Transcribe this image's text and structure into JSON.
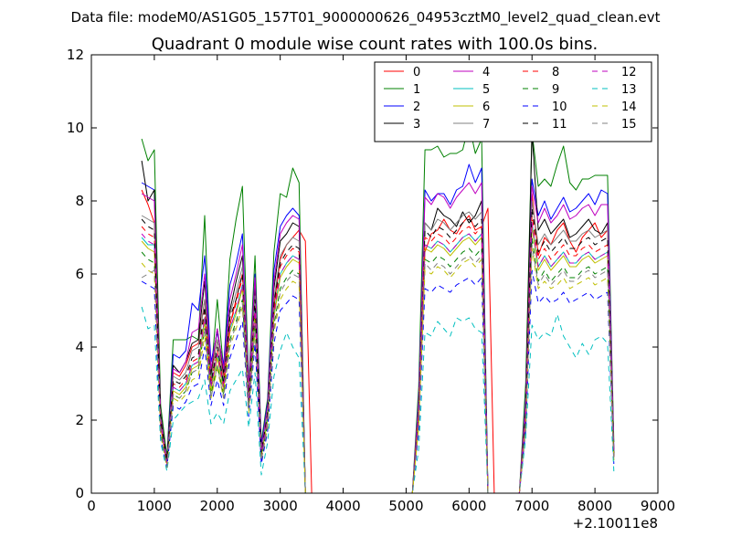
{
  "figure": {
    "suptitle": "Data file: modeM0/AS1G05_157T01_9000000626_04953cztM0_level2_quad_clean.evt"
  },
  "chart_data": {
    "type": "line",
    "title": "Quadrant 0 module wise count rates with 100.0s bins.",
    "xlabel": "",
    "ylabel": "",
    "x_offset_label": "+2.10011e8",
    "xlim": [
      0,
      9000
    ],
    "ylim": [
      0,
      12
    ],
    "xticks": [
      0,
      1000,
      2000,
      3000,
      4000,
      5000,
      6000,
      7000,
      8000,
      9000
    ],
    "yticks": [
      0,
      2,
      4,
      6,
      8,
      10,
      12
    ],
    "grid": false,
    "legend_position": "top-right",
    "legend_columns": 4,
    "x": [
      800,
      900,
      1000,
      1100,
      1200,
      1300,
      1400,
      1500,
      1600,
      1700,
      1800,
      1900,
      2000,
      2100,
      2200,
      2300,
      2400,
      2500,
      2600,
      2700,
      2800,
      2900,
      3000,
      3100,
      3200,
      3300,
      3400,
      3500,
      5100,
      5200,
      5300,
      5400,
      5500,
      5600,
      5700,
      5800,
      5900,
      6000,
      6100,
      6200,
      6300,
      6400,
      6800,
      6900,
      7000,
      7100,
      7200,
      7300,
      7400,
      7500,
      7600,
      7700,
      7800,
      7900,
      8000,
      8100,
      8200,
      8300
    ],
    "series": [
      {
        "name": "0",
        "color": "#ff0000",
        "dash": "solid",
        "values": [
          8.3,
          7.9,
          7.4,
          2.0,
          0.9,
          3.3,
          3.2,
          3.5,
          4.0,
          4.1,
          5.3,
          3.2,
          4.2,
          3.2,
          4.6,
          5.3,
          6.0,
          2.8,
          5.6,
          1.1,
          2.1,
          5.1,
          6.4,
          6.8,
          7.0,
          7.2,
          6.9,
          0,
          0,
          2.4,
          6.6,
          7.1,
          7.2,
          7.5,
          7.2,
          7.1,
          7.4,
          7.6,
          7.2,
          7.3,
          7.8,
          0,
          0,
          2.3,
          8.2,
          6.5,
          7.0,
          6.8,
          7.2,
          7.4,
          6.9,
          6.6,
          7.0,
          7.2,
          7.4,
          7.0,
          7.2,
          1.1
        ]
      },
      {
        "name": "1",
        "color": "#008000",
        "dash": "solid",
        "values": [
          9.7,
          9.1,
          9.4,
          2.4,
          1.0,
          4.2,
          4.2,
          4.2,
          4.3,
          4.2,
          7.6,
          3.2,
          5.3,
          3.4,
          6.4,
          7.5,
          8.4,
          3.0,
          6.5,
          1.4,
          2.6,
          6.6,
          8.2,
          8.1,
          8.9,
          8.5,
          0,
          0,
          0,
          2.9,
          9.4,
          9.4,
          9.5,
          9.2,
          9.3,
          9.3,
          9.4,
          10.1,
          9.3,
          9.7,
          0,
          0,
          0,
          3.0,
          9.9,
          8.4,
          8.6,
          8.4,
          9.0,
          9.5,
          8.5,
          8.3,
          8.6,
          8.6,
          8.7,
          8.7,
          8.7,
          1.4
        ]
      },
      {
        "name": "2",
        "color": "#0000ff",
        "dash": "solid",
        "values": [
          8.5,
          8.4,
          8.3,
          2.0,
          0.9,
          3.8,
          3.7,
          3.9,
          5.2,
          5.0,
          6.5,
          3.6,
          4.4,
          3.5,
          5.7,
          6.3,
          7.1,
          2.9,
          6.0,
          1.3,
          2.5,
          6.1,
          7.3,
          7.6,
          7.8,
          7.6,
          0,
          0,
          0,
          2.6,
          8.3,
          8.0,
          8.2,
          8.2,
          7.9,
          8.3,
          8.4,
          9.0,
          8.5,
          8.9,
          0,
          0,
          0,
          2.6,
          8.6,
          7.6,
          8.0,
          7.5,
          7.8,
          8.1,
          7.7,
          7.8,
          8.0,
          8.2,
          7.9,
          8.3,
          8.2,
          1.2
        ]
      },
      {
        "name": "3",
        "color": "#000000",
        "dash": "solid",
        "values": [
          9.1,
          8.0,
          8.3,
          2.2,
          0.9,
          3.5,
          3.3,
          3.6,
          4.1,
          4.2,
          5.8,
          3.3,
          4.5,
          3.3,
          5.0,
          5.8,
          6.5,
          2.8,
          5.7,
          1.2,
          2.4,
          5.6,
          6.9,
          7.1,
          7.4,
          7.3,
          0,
          0,
          0,
          2.4,
          7.4,
          7.2,
          7.8,
          7.6,
          7.5,
          7.3,
          7.7,
          7.4,
          7.6,
          8.0,
          0,
          0,
          0,
          2.4,
          9.9,
          7.2,
          7.5,
          7.1,
          7.3,
          7.5,
          7.0,
          7.1,
          7.3,
          7.5,
          7.2,
          7.1,
          7.4,
          1.1
        ]
      },
      {
        "name": "4",
        "color": "#bf00bf",
        "dash": "solid",
        "values": [
          8.2,
          8.1,
          8.0,
          2.1,
          0.9,
          3.4,
          3.3,
          3.6,
          4.4,
          4.5,
          6.0,
          3.4,
          4.5,
          3.4,
          5.3,
          6.0,
          6.8,
          2.9,
          5.9,
          1.2,
          2.4,
          5.8,
          7.1,
          7.4,
          7.6,
          7.5,
          0,
          0,
          0,
          2.5,
          8.1,
          7.9,
          8.2,
          8.1,
          7.8,
          8.1,
          8.3,
          8.5,
          8.2,
          8.5,
          0,
          0,
          0,
          2.5,
          8.4,
          7.4,
          7.8,
          7.4,
          7.6,
          7.9,
          7.5,
          7.6,
          7.8,
          7.9,
          7.6,
          7.9,
          7.9,
          1.2
        ]
      },
      {
        "name": "5",
        "color": "#00bfbf",
        "dash": "solid",
        "values": [
          7.0,
          6.8,
          6.8,
          1.9,
          0.8,
          2.9,
          2.8,
          3.0,
          3.5,
          3.6,
          4.8,
          2.9,
          3.8,
          2.9,
          4.5,
          5.0,
          5.7,
          2.5,
          5.0,
          1.0,
          2.1,
          4.9,
          6.0,
          6.3,
          6.5,
          6.4,
          0,
          0,
          0,
          2.1,
          6.8,
          6.7,
          6.9,
          6.8,
          6.6,
          6.8,
          7.0,
          7.1,
          6.9,
          7.1,
          0,
          0,
          0,
          2.1,
          7.4,
          6.2,
          6.5,
          6.2,
          6.4,
          6.6,
          6.3,
          6.3,
          6.5,
          6.6,
          6.4,
          6.5,
          6.6,
          1.0
        ]
      },
      {
        "name": "6",
        "color": "#bfbf00",
        "dash": "solid",
        "values": [
          6.9,
          6.7,
          6.6,
          1.8,
          0.8,
          2.8,
          2.7,
          2.9,
          3.4,
          3.5,
          4.7,
          2.8,
          3.7,
          2.8,
          4.4,
          4.9,
          5.6,
          2.4,
          4.9,
          1.0,
          2.0,
          4.8,
          5.9,
          6.2,
          6.4,
          6.3,
          0,
          0,
          0,
          2.0,
          6.7,
          6.6,
          6.8,
          6.7,
          6.5,
          6.7,
          6.9,
          7.0,
          6.8,
          7.0,
          0,
          0,
          0,
          2.0,
          7.3,
          6.1,
          6.4,
          6.1,
          6.3,
          6.5,
          6.2,
          6.2,
          6.4,
          6.5,
          6.3,
          6.4,
          6.5,
          0.9
        ]
      },
      {
        "name": "7",
        "color": "#808080",
        "dash": "solid",
        "values": [
          7.6,
          7.5,
          7.4,
          2.0,
          0.9,
          3.2,
          3.1,
          3.3,
          3.9,
          4.0,
          5.3,
          3.1,
          4.2,
          3.1,
          4.9,
          5.5,
          6.2,
          2.7,
          5.4,
          1.1,
          2.3,
          5.3,
          6.5,
          6.8,
          7.0,
          6.9,
          0,
          0,
          0,
          2.3,
          7.4,
          7.2,
          7.5,
          7.4,
          7.2,
          7.4,
          7.6,
          7.7,
          7.5,
          7.7,
          0,
          0,
          0,
          2.3,
          8.0,
          6.8,
          7.1,
          6.8,
          7.0,
          7.2,
          6.9,
          6.9,
          7.1,
          7.2,
          7.0,
          7.1,
          7.2,
          1.1
        ]
      },
      {
        "name": "8",
        "color": "#ff0000",
        "dash": "dashed",
        "values": [
          7.3,
          7.1,
          7.0,
          1.9,
          0.8,
          3.0,
          2.9,
          3.1,
          3.6,
          3.7,
          5.0,
          3.0,
          3.9,
          3.0,
          4.6,
          5.2,
          5.9,
          2.6,
          5.1,
          1.0,
          2.2,
          5.0,
          6.2,
          6.5,
          6.7,
          6.6,
          0,
          0,
          0,
          2.2,
          7.0,
          6.9,
          7.1,
          7.0,
          6.8,
          7.0,
          7.2,
          7.3,
          7.1,
          7.3,
          0,
          0,
          0,
          2.2,
          7.6,
          6.4,
          6.7,
          6.4,
          6.6,
          6.8,
          6.5,
          6.5,
          6.7,
          6.8,
          6.6,
          6.7,
          6.8,
          1.0
        ]
      },
      {
        "name": "9",
        "color": "#008000",
        "dash": "dashed",
        "values": [
          6.6,
          6.4,
          6.3,
          1.7,
          0.8,
          2.7,
          2.6,
          2.8,
          3.3,
          3.4,
          4.5,
          2.7,
          3.5,
          2.7,
          4.2,
          4.7,
          5.3,
          2.3,
          4.6,
          0.9,
          1.9,
          4.6,
          5.6,
          5.9,
          6.1,
          6.0,
          0,
          0,
          0,
          1.9,
          6.4,
          6.3,
          6.5,
          6.4,
          6.2,
          6.4,
          6.6,
          6.7,
          6.5,
          6.7,
          0,
          0,
          0,
          1.9,
          7.0,
          5.8,
          6.1,
          5.8,
          6.0,
          6.2,
          5.9,
          5.9,
          6.1,
          6.2,
          6.0,
          6.1,
          6.2,
          0.9
        ]
      },
      {
        "name": "10",
        "color": "#0000ff",
        "dash": "dashed",
        "values": [
          5.8,
          5.7,
          5.6,
          1.5,
          0.7,
          2.4,
          2.3,
          2.5,
          2.9,
          3.0,
          4.0,
          2.4,
          3.1,
          2.4,
          3.7,
          4.2,
          4.7,
          2.1,
          4.1,
          0.8,
          1.7,
          4.1,
          5.0,
          5.2,
          5.4,
          5.3,
          0,
          0,
          0,
          1.7,
          5.6,
          5.5,
          5.7,
          5.6,
          5.5,
          5.7,
          5.8,
          5.9,
          5.7,
          5.9,
          0,
          0,
          0,
          1.7,
          6.1,
          5.2,
          5.4,
          5.2,
          5.3,
          5.5,
          5.2,
          5.3,
          5.4,
          5.5,
          5.3,
          5.4,
          5.5,
          0.8
        ]
      },
      {
        "name": "11",
        "color": "#000000",
        "dash": "dashed",
        "values": [
          7.5,
          7.3,
          7.2,
          2.0,
          0.9,
          3.1,
          3.0,
          3.2,
          3.7,
          3.8,
          5.1,
          3.0,
          4.0,
          3.0,
          4.8,
          5.3,
          6.0,
          2.6,
          5.3,
          1.1,
          2.2,
          5.2,
          6.3,
          6.6,
          6.8,
          6.7,
          0,
          0,
          0,
          2.2,
          7.2,
          7.0,
          7.3,
          7.2,
          7.0,
          7.2,
          7.4,
          7.5,
          7.3,
          7.5,
          0,
          0,
          0,
          2.2,
          7.8,
          6.6,
          6.9,
          6.6,
          6.8,
          7.0,
          6.7,
          6.7,
          6.9,
          7.0,
          6.8,
          6.9,
          7.0,
          1.0
        ]
      },
      {
        "name": "12",
        "color": "#bf00bf",
        "dash": "dashed",
        "values": [
          7.1,
          6.9,
          6.8,
          1.9,
          0.8,
          2.9,
          2.8,
          3.0,
          3.5,
          3.6,
          4.8,
          2.9,
          3.8,
          2.9,
          4.5,
          5.0,
          5.7,
          2.5,
          5.0,
          1.0,
          2.1,
          4.9,
          6.0,
          6.3,
          6.5,
          6.4,
          0,
          0,
          0,
          2.1,
          6.8,
          6.7,
          6.9,
          6.8,
          6.6,
          6.8,
          7.0,
          7.1,
          6.9,
          7.1,
          0,
          0,
          0,
          2.1,
          7.4,
          6.2,
          6.5,
          6.2,
          6.4,
          6.6,
          6.3,
          6.3,
          6.5,
          6.6,
          6.4,
          6.5,
          6.6,
          1.0
        ]
      },
      {
        "name": "13",
        "color": "#00bfbf",
        "dash": "dashed",
        "values": [
          5.1,
          4.5,
          4.6,
          1.4,
          0.6,
          2.0,
          2.2,
          2.4,
          2.5,
          2.6,
          3.1,
          1.9,
          2.2,
          1.9,
          2.8,
          3.1,
          3.4,
          1.8,
          3.3,
          0.5,
          1.4,
          3.2,
          3.9,
          4.4,
          4.0,
          3.7,
          0,
          0,
          0,
          1.2,
          4.4,
          4.3,
          4.7,
          4.5,
          4.3,
          4.8,
          4.7,
          4.8,
          4.5,
          4.4,
          0,
          0,
          0,
          1.5,
          4.6,
          4.2,
          4.4,
          4.3,
          4.9,
          4.3,
          4.0,
          3.7,
          4.1,
          3.8,
          4.2,
          4.3,
          4.1,
          0.6
        ]
      },
      {
        "name": "14",
        "color": "#bfbf00",
        "dash": "dashed",
        "values": [
          6.3,
          6.1,
          6.0,
          1.6,
          0.7,
          2.6,
          2.5,
          2.7,
          3.1,
          3.2,
          4.3,
          2.6,
          3.4,
          2.6,
          4.0,
          4.5,
          5.1,
          2.2,
          4.4,
          0.9,
          1.8,
          4.4,
          5.3,
          5.6,
          5.8,
          5.7,
          0,
          0,
          0,
          1.8,
          6.1,
          6.0,
          6.2,
          6.1,
          5.9,
          6.1,
          6.3,
          6.4,
          6.2,
          6.4,
          0,
          0,
          0,
          1.8,
          6.7,
          5.6,
          5.8,
          5.6,
          5.7,
          5.9,
          5.6,
          5.7,
          5.8,
          5.9,
          5.7,
          5.8,
          5.9,
          0.9
        ]
      },
      {
        "name": "15",
        "color": "#808080",
        "dash": "dashed",
        "values": [
          5.9,
          6.0,
          6.1,
          1.6,
          0.7,
          2.7,
          2.6,
          2.8,
          3.3,
          3.4,
          4.5,
          2.6,
          3.5,
          2.6,
          4.1,
          4.6,
          5.2,
          2.3,
          4.5,
          0.9,
          1.9,
          4.5,
          5.5,
          5.8,
          6.0,
          5.9,
          0,
          0,
          0,
          1.9,
          6.3,
          6.1,
          6.3,
          6.2,
          6.0,
          6.2,
          6.4,
          6.5,
          6.3,
          6.5,
          0,
          0,
          0,
          1.9,
          6.8,
          5.7,
          6.0,
          5.7,
          5.9,
          6.1,
          5.8,
          5.8,
          6.0,
          6.1,
          5.9,
          6.0,
          6.1,
          0.9
        ]
      }
    ]
  }
}
